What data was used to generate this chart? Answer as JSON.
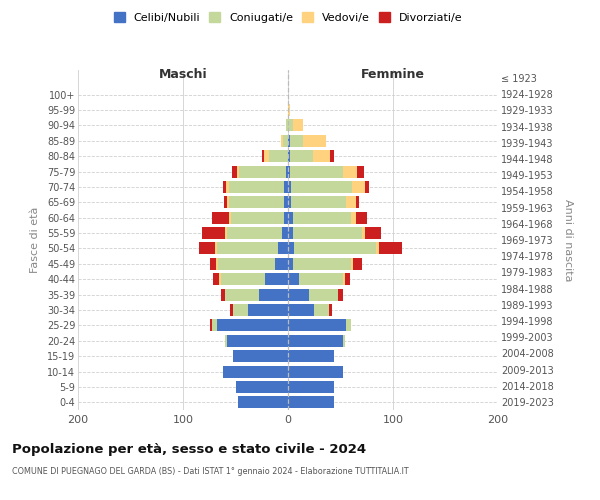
{
  "age_groups": [
    "0-4",
    "5-9",
    "10-14",
    "15-19",
    "20-24",
    "25-29",
    "30-34",
    "35-39",
    "40-44",
    "45-49",
    "50-54",
    "55-59",
    "60-64",
    "65-69",
    "70-74",
    "75-79",
    "80-84",
    "85-89",
    "90-94",
    "95-99",
    "100+"
  ],
  "birth_years": [
    "2019-2023",
    "2014-2018",
    "2009-2013",
    "2004-2008",
    "1999-2003",
    "1994-1998",
    "1989-1993",
    "1984-1988",
    "1979-1983",
    "1974-1978",
    "1969-1973",
    "1964-1968",
    "1959-1963",
    "1954-1958",
    "1949-1953",
    "1944-1948",
    "1939-1943",
    "1934-1938",
    "1929-1933",
    "1924-1928",
    "≤ 1923"
  ],
  "male_celibi": [
    48,
    50,
    62,
    52,
    58,
    68,
    38,
    28,
    22,
    12,
    10,
    6,
    4,
    4,
    4,
    2,
    0,
    0,
    0,
    0,
    0
  ],
  "male_coniugati": [
    0,
    0,
    0,
    0,
    2,
    4,
    14,
    32,
    42,
    55,
    58,
    52,
    50,
    52,
    52,
    45,
    18,
    5,
    2,
    0,
    0
  ],
  "male_vedovi": [
    0,
    0,
    0,
    0,
    0,
    0,
    0,
    0,
    2,
    2,
    2,
    2,
    2,
    2,
    3,
    2,
    5,
    2,
    0,
    0,
    0
  ],
  "male_divorziati": [
    0,
    0,
    0,
    0,
    0,
    2,
    3,
    4,
    5,
    5,
    15,
    22,
    16,
    3,
    3,
    4,
    2,
    0,
    0,
    0,
    0
  ],
  "female_nubili": [
    44,
    44,
    52,
    44,
    52,
    55,
    25,
    20,
    10,
    5,
    6,
    5,
    5,
    3,
    3,
    2,
    2,
    2,
    0,
    0,
    0
  ],
  "female_coniugate": [
    0,
    0,
    0,
    0,
    2,
    5,
    14,
    28,
    42,
    55,
    78,
    65,
    55,
    52,
    58,
    50,
    22,
    12,
    5,
    0,
    0
  ],
  "female_vedove": [
    0,
    0,
    0,
    0,
    0,
    0,
    0,
    0,
    2,
    2,
    3,
    3,
    5,
    10,
    12,
    14,
    16,
    22,
    9,
    2,
    0
  ],
  "female_divorziate": [
    0,
    0,
    0,
    0,
    0,
    0,
    3,
    4,
    5,
    8,
    22,
    16,
    10,
    3,
    4,
    6,
    4,
    0,
    0,
    0,
    0
  ],
  "color_celibi": "#4472C4",
  "color_coniugati": "#C5D89B",
  "color_vedovi": "#FFD280",
  "color_divorziati": "#CC2020",
  "xlim": 200,
  "title": "Popolazione per età, sesso e stato civile - 2024",
  "subtitle": "COMUNE DI PUEGNAGO DEL GARDA (BS) - Dati ISTAT 1° gennaio 2024 - Elaborazione TUTTITALIA.IT",
  "ylabel_left": "Fasce di età",
  "ylabel_right": "Anni di nascita",
  "legend_labels": [
    "Celibi/Nubili",
    "Coniugati/e",
    "Vedovi/e",
    "Divorziati/e"
  ],
  "header_maschi": "Maschi",
  "header_femmine": "Femmine"
}
